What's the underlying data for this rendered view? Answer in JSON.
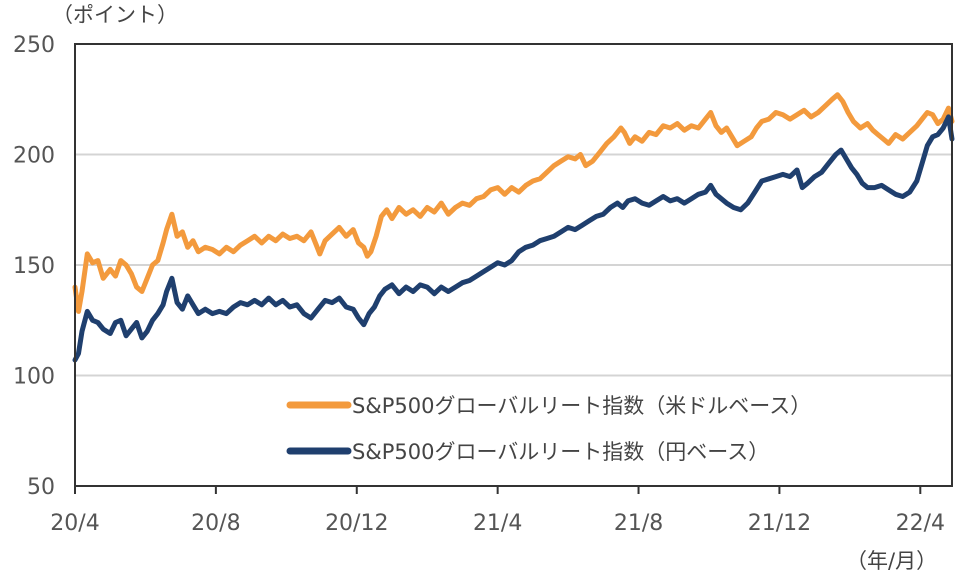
{
  "chart_data": {
    "type": "line",
    "title": "",
    "y_unit_label": "（ポイント）",
    "x_unit_label": "（年/月）",
    "ylim": [
      50,
      250
    ],
    "y_ticks": [
      "50",
      "100",
      "150",
      "200",
      "250"
    ],
    "y_tick_values": [
      50,
      100,
      150,
      200,
      250
    ],
    "x_ticks": [
      "20/4",
      "20/8",
      "20/12",
      "21/4",
      "21/8",
      "21/12",
      "22/4"
    ],
    "x_tick_months": [
      0,
      4,
      8,
      12,
      16,
      20,
      24
    ],
    "x_range_months": [
      0,
      24.9
    ],
    "grid": true,
    "legend_position": "lower-center",
    "series": [
      {
        "name": "S&P500グローバルリート指数（米ドルベース）",
        "color": "#f39a3d",
        "points": [
          [
            0.0,
            140
          ],
          [
            0.1,
            129
          ],
          [
            0.2,
            138
          ],
          [
            0.35,
            155
          ],
          [
            0.5,
            151
          ],
          [
            0.65,
            152
          ],
          [
            0.8,
            144
          ],
          [
            1.0,
            148
          ],
          [
            1.15,
            145
          ],
          [
            1.3,
            152
          ],
          [
            1.45,
            150
          ],
          [
            1.6,
            146
          ],
          [
            1.75,
            140
          ],
          [
            1.9,
            138
          ],
          [
            2.05,
            144
          ],
          [
            2.2,
            150
          ],
          [
            2.35,
            152
          ],
          [
            2.5,
            160
          ],
          [
            2.6,
            166
          ],
          [
            2.75,
            173
          ],
          [
            2.9,
            163
          ],
          [
            3.05,
            165
          ],
          [
            3.2,
            158
          ],
          [
            3.35,
            161
          ],
          [
            3.5,
            156
          ],
          [
            3.7,
            158
          ],
          [
            3.9,
            157
          ],
          [
            4.1,
            155
          ],
          [
            4.3,
            158
          ],
          [
            4.5,
            156
          ],
          [
            4.7,
            159
          ],
          [
            4.9,
            161
          ],
          [
            5.1,
            163
          ],
          [
            5.3,
            160
          ],
          [
            5.5,
            163
          ],
          [
            5.7,
            161
          ],
          [
            5.9,
            164
          ],
          [
            6.1,
            162
          ],
          [
            6.3,
            163
          ],
          [
            6.5,
            161
          ],
          [
            6.7,
            165
          ],
          [
            6.85,
            159
          ],
          [
            6.95,
            155
          ],
          [
            7.1,
            161
          ],
          [
            7.3,
            164
          ],
          [
            7.5,
            167
          ],
          [
            7.7,
            163
          ],
          [
            7.9,
            166
          ],
          [
            8.05,
            160
          ],
          [
            8.2,
            158
          ],
          [
            8.3,
            154
          ],
          [
            8.4,
            156
          ],
          [
            8.55,
            163
          ],
          [
            8.7,
            172
          ],
          [
            8.85,
            175
          ],
          [
            9.0,
            171
          ],
          [
            9.2,
            176
          ],
          [
            9.4,
            173
          ],
          [
            9.6,
            175
          ],
          [
            9.8,
            172
          ],
          [
            10.0,
            176
          ],
          [
            10.2,
            174
          ],
          [
            10.4,
            178
          ],
          [
            10.6,
            173
          ],
          [
            10.8,
            176
          ],
          [
            11.0,
            178
          ],
          [
            11.2,
            177
          ],
          [
            11.4,
            180
          ],
          [
            11.6,
            181
          ],
          [
            11.8,
            184
          ],
          [
            12.0,
            185
          ],
          [
            12.2,
            182
          ],
          [
            12.4,
            185
          ],
          [
            12.6,
            183
          ],
          [
            12.8,
            186
          ],
          [
            13.0,
            188
          ],
          [
            13.2,
            189
          ],
          [
            13.4,
            192
          ],
          [
            13.6,
            195
          ],
          [
            13.8,
            197
          ],
          [
            14.0,
            199
          ],
          [
            14.2,
            198
          ],
          [
            14.35,
            200
          ],
          [
            14.5,
            195
          ],
          [
            14.7,
            197
          ],
          [
            14.9,
            201
          ],
          [
            15.1,
            205
          ],
          [
            15.3,
            208
          ],
          [
            15.5,
            212
          ],
          [
            15.6,
            210
          ],
          [
            15.75,
            205
          ],
          [
            15.9,
            208
          ],
          [
            16.1,
            206
          ],
          [
            16.3,
            210
          ],
          [
            16.5,
            209
          ],
          [
            16.7,
            213
          ],
          [
            16.9,
            212
          ],
          [
            17.1,
            214
          ],
          [
            17.3,
            211
          ],
          [
            17.5,
            213
          ],
          [
            17.7,
            212
          ],
          [
            17.9,
            216
          ],
          [
            18.05,
            219
          ],
          [
            18.2,
            213
          ],
          [
            18.35,
            210
          ],
          [
            18.5,
            212
          ],
          [
            18.65,
            208
          ],
          [
            18.8,
            204
          ],
          [
            19.0,
            206
          ],
          [
            19.2,
            208
          ],
          [
            19.35,
            212
          ],
          [
            19.5,
            215
          ],
          [
            19.7,
            216
          ],
          [
            19.9,
            219
          ],
          [
            20.1,
            218
          ],
          [
            20.3,
            216
          ],
          [
            20.5,
            218
          ],
          [
            20.7,
            220
          ],
          [
            20.9,
            217
          ],
          [
            21.1,
            219
          ],
          [
            21.3,
            222
          ],
          [
            21.5,
            225
          ],
          [
            21.65,
            227
          ],
          [
            21.8,
            224
          ],
          [
            21.95,
            219
          ],
          [
            22.1,
            215
          ],
          [
            22.3,
            212
          ],
          [
            22.5,
            214
          ],
          [
            22.65,
            211
          ],
          [
            22.8,
            209
          ],
          [
            22.95,
            207
          ],
          [
            23.1,
            205
          ],
          [
            23.3,
            209
          ],
          [
            23.5,
            207
          ],
          [
            23.7,
            210
          ],
          [
            23.9,
            213
          ],
          [
            24.05,
            216
          ],
          [
            24.2,
            219
          ],
          [
            24.35,
            218
          ],
          [
            24.5,
            214
          ],
          [
            24.65,
            216
          ],
          [
            24.8,
            221
          ],
          [
            24.9,
            215
          ]
        ]
      },
      {
        "name": "S&P500グローバルリート指数（円ベース）",
        "color": "#1f3f6e",
        "points": [
          [
            0.0,
            107
          ],
          [
            0.1,
            110
          ],
          [
            0.2,
            120
          ],
          [
            0.35,
            129
          ],
          [
            0.5,
            125
          ],
          [
            0.65,
            124
          ],
          [
            0.8,
            121
          ],
          [
            1.0,
            119
          ],
          [
            1.15,
            124
          ],
          [
            1.3,
            125
          ],
          [
            1.45,
            118
          ],
          [
            1.6,
            121
          ],
          [
            1.75,
            124
          ],
          [
            1.9,
            117
          ],
          [
            2.05,
            120
          ],
          [
            2.2,
            125
          ],
          [
            2.35,
            128
          ],
          [
            2.5,
            132
          ],
          [
            2.6,
            138
          ],
          [
            2.75,
            144
          ],
          [
            2.9,
            133
          ],
          [
            3.05,
            130
          ],
          [
            3.2,
            136
          ],
          [
            3.35,
            132
          ],
          [
            3.5,
            128
          ],
          [
            3.7,
            130
          ],
          [
            3.9,
            128
          ],
          [
            4.1,
            129
          ],
          [
            4.3,
            128
          ],
          [
            4.5,
            131
          ],
          [
            4.7,
            133
          ],
          [
            4.9,
            132
          ],
          [
            5.1,
            134
          ],
          [
            5.3,
            132
          ],
          [
            5.5,
            135
          ],
          [
            5.7,
            132
          ],
          [
            5.9,
            134
          ],
          [
            6.1,
            131
          ],
          [
            6.3,
            132
          ],
          [
            6.5,
            128
          ],
          [
            6.7,
            126
          ],
          [
            6.9,
            130
          ],
          [
            7.1,
            134
          ],
          [
            7.3,
            133
          ],
          [
            7.5,
            135
          ],
          [
            7.7,
            131
          ],
          [
            7.9,
            130
          ],
          [
            8.05,
            126
          ],
          [
            8.2,
            123
          ],
          [
            8.35,
            128
          ],
          [
            8.5,
            131
          ],
          [
            8.65,
            136
          ],
          [
            8.8,
            139
          ],
          [
            9.0,
            141
          ],
          [
            9.2,
            137
          ],
          [
            9.4,
            140
          ],
          [
            9.6,
            138
          ],
          [
            9.8,
            141
          ],
          [
            10.0,
            140
          ],
          [
            10.2,
            137
          ],
          [
            10.4,
            140
          ],
          [
            10.6,
            138
          ],
          [
            10.8,
            140
          ],
          [
            11.0,
            142
          ],
          [
            11.2,
            143
          ],
          [
            11.4,
            145
          ],
          [
            11.6,
            147
          ],
          [
            11.8,
            149
          ],
          [
            12.0,
            151
          ],
          [
            12.2,
            150
          ],
          [
            12.4,
            152
          ],
          [
            12.6,
            156
          ],
          [
            12.8,
            158
          ],
          [
            13.0,
            159
          ],
          [
            13.2,
            161
          ],
          [
            13.4,
            162
          ],
          [
            13.6,
            163
          ],
          [
            13.8,
            165
          ],
          [
            14.0,
            167
          ],
          [
            14.2,
            166
          ],
          [
            14.4,
            168
          ],
          [
            14.6,
            170
          ],
          [
            14.8,
            172
          ],
          [
            15.0,
            173
          ],
          [
            15.2,
            176
          ],
          [
            15.4,
            178
          ],
          [
            15.55,
            176
          ],
          [
            15.7,
            179
          ],
          [
            15.9,
            180
          ],
          [
            16.1,
            178
          ],
          [
            16.3,
            177
          ],
          [
            16.5,
            179
          ],
          [
            16.7,
            181
          ],
          [
            16.9,
            179
          ],
          [
            17.1,
            180
          ],
          [
            17.3,
            178
          ],
          [
            17.5,
            180
          ],
          [
            17.7,
            182
          ],
          [
            17.9,
            183
          ],
          [
            18.05,
            186
          ],
          [
            18.2,
            182
          ],
          [
            18.35,
            180
          ],
          [
            18.5,
            178
          ],
          [
            18.7,
            176
          ],
          [
            18.9,
            175
          ],
          [
            19.1,
            178
          ],
          [
            19.3,
            183
          ],
          [
            19.5,
            188
          ],
          [
            19.7,
            189
          ],
          [
            19.9,
            190
          ],
          [
            20.1,
            191
          ],
          [
            20.3,
            190
          ],
          [
            20.5,
            193
          ],
          [
            20.65,
            185
          ],
          [
            20.8,
            187
          ],
          [
            21.0,
            190
          ],
          [
            21.2,
            192
          ],
          [
            21.4,
            196
          ],
          [
            21.6,
            200
          ],
          [
            21.75,
            202
          ],
          [
            21.9,
            198
          ],
          [
            22.05,
            194
          ],
          [
            22.2,
            191
          ],
          [
            22.35,
            187
          ],
          [
            22.5,
            185
          ],
          [
            22.7,
            185
          ],
          [
            22.9,
            186
          ],
          [
            23.1,
            184
          ],
          [
            23.3,
            182
          ],
          [
            23.5,
            181
          ],
          [
            23.7,
            183
          ],
          [
            23.9,
            188
          ],
          [
            24.05,
            196
          ],
          [
            24.2,
            204
          ],
          [
            24.35,
            208
          ],
          [
            24.5,
            209
          ],
          [
            24.65,
            212
          ],
          [
            24.8,
            217
          ],
          [
            24.9,
            207
          ]
        ]
      }
    ]
  }
}
